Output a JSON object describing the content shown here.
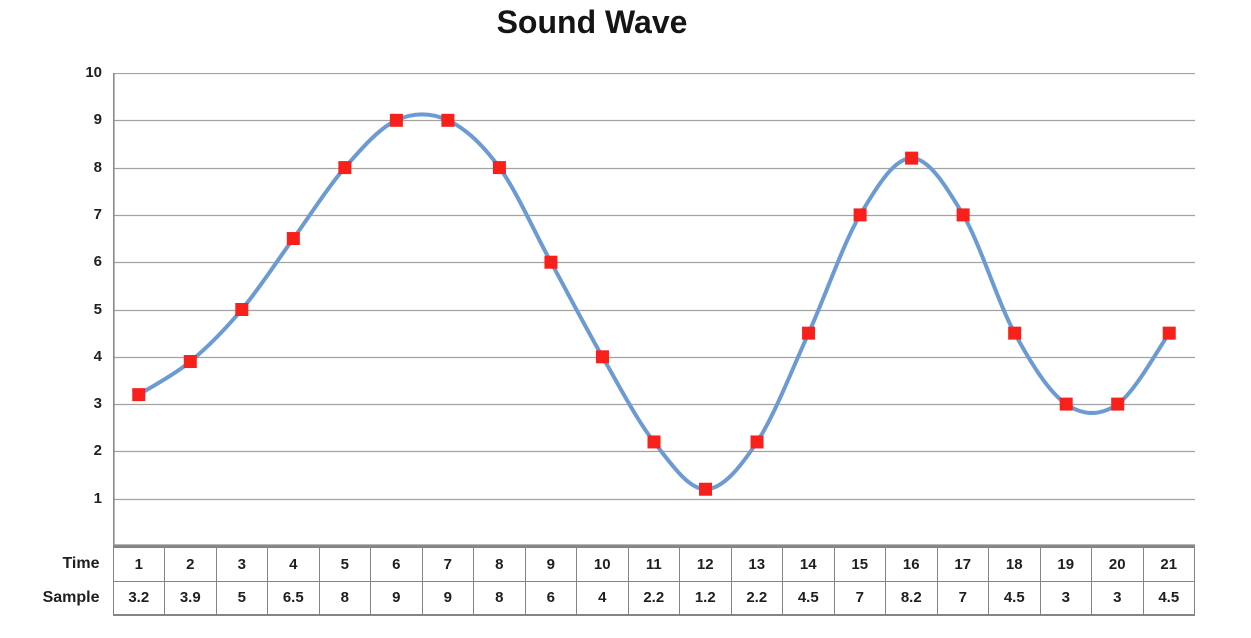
{
  "title": "Sound Wave",
  "y_axis": {
    "ticks": [
      10,
      9,
      8,
      7,
      6,
      5,
      4,
      3,
      2,
      1
    ]
  },
  "table": {
    "row1_label": "Time",
    "row2_label": "Sample"
  },
  "colors": {
    "line": "#6B9BD2",
    "marker": "#F8201A",
    "gridline": "#A2A2A2",
    "axis_border": "#8A8A8A",
    "text": "#1f1f1f",
    "title_text": "#151515"
  },
  "chart_data": {
    "type": "line",
    "smooth": true,
    "marker_shape": "square",
    "title": "Sound Wave",
    "xlabel": "Time",
    "ylabel": "Sample",
    "x": [
      1,
      2,
      3,
      4,
      5,
      6,
      7,
      8,
      9,
      10,
      11,
      12,
      13,
      14,
      15,
      16,
      17,
      18,
      19,
      20,
      21
    ],
    "series": [
      {
        "name": "Sample",
        "values": [
          3.2,
          3.9,
          5,
          6.5,
          8,
          9,
          9,
          8,
          6,
          4,
          2.2,
          1.2,
          2.2,
          4.5,
          7,
          8.2,
          7,
          4.5,
          3,
          3,
          4.5
        ]
      }
    ],
    "ylim": [
      0,
      10
    ],
    "ytick_step": 1,
    "grid": true,
    "legend_position": "none",
    "data_table_shown": true
  }
}
